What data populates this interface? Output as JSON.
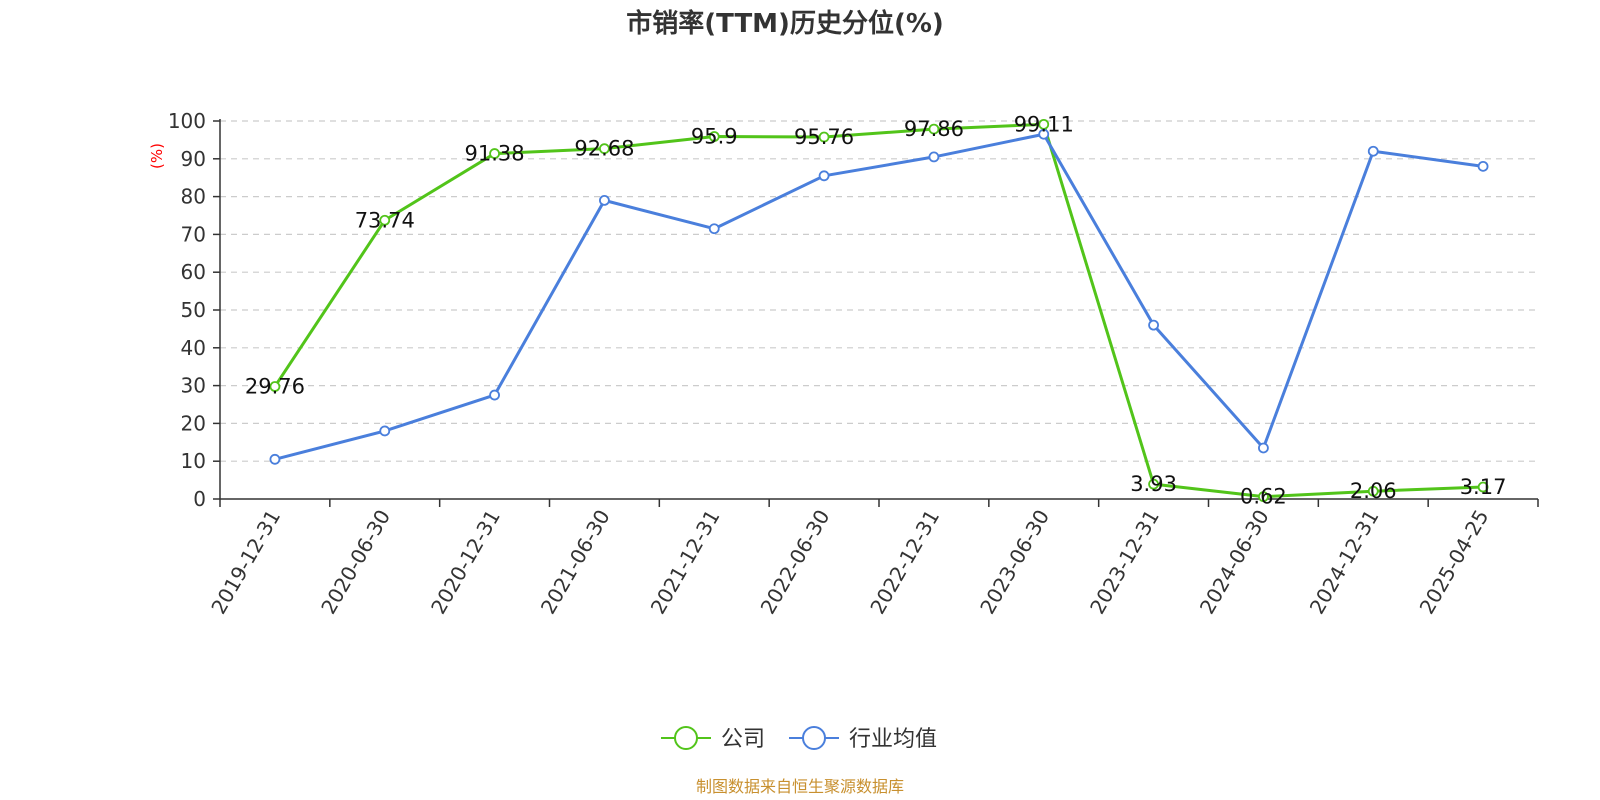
{
  "chart_data": {
    "type": "line",
    "title": "市销率(TTM)历史分位(%)",
    "ylabel": "(%)",
    "ylim": [
      0,
      100
    ],
    "yticks": [
      0,
      10,
      20,
      30,
      40,
      50,
      60,
      70,
      80,
      90,
      100
    ],
    "grid": true,
    "legend_position": "bottom-center",
    "categories": [
      "2019-12-31",
      "2020-06-30",
      "2020-12-31",
      "2021-06-30",
      "2021-12-31",
      "2022-06-30",
      "2022-12-31",
      "2023-06-30",
      "2023-12-31",
      "2024-06-30",
      "2024-12-31",
      "2025-04-25"
    ],
    "series": [
      {
        "name": "公司",
        "color": "#52c41a",
        "values": [
          29.76,
          73.74,
          91.38,
          92.68,
          95.9,
          95.76,
          97.86,
          99.11,
          3.93,
          0.62,
          2.06,
          3.17
        ],
        "labels": [
          "29.76",
          "73.74",
          "91.38",
          "92.68",
          "95.9",
          "95.76",
          "97.86",
          "99.11",
          "3.93",
          "0.62",
          "2.06",
          "3.17"
        ]
      },
      {
        "name": "行业均值",
        "color": "#4a7fdc",
        "values": [
          10.5,
          18.0,
          27.5,
          79.0,
          71.5,
          85.5,
          90.5,
          96.5,
          46.0,
          13.5,
          92.0,
          88.0
        ]
      }
    ],
    "source": "制图数据来自恒生聚源数据库"
  }
}
